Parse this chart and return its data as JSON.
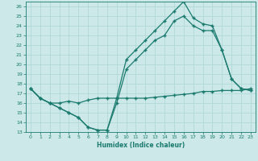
{
  "title": "",
  "xlabel": "Humidex (Indice chaleur)",
  "xlim": [
    -0.5,
    23.5
  ],
  "ylim": [
    13,
    26.5
  ],
  "yticks": [
    13,
    14,
    15,
    16,
    17,
    18,
    19,
    20,
    21,
    22,
    23,
    24,
    25,
    26
  ],
  "xticks": [
    0,
    1,
    2,
    3,
    4,
    5,
    6,
    7,
    8,
    9,
    10,
    11,
    12,
    13,
    14,
    15,
    16,
    17,
    18,
    19,
    20,
    21,
    22,
    23
  ],
  "bg_color": "#cce8e8",
  "grid_color": "#b0d8d8",
  "line_color": "#1a7a6e",
  "x": [
    0,
    1,
    2,
    3,
    4,
    5,
    6,
    7,
    8,
    9,
    10,
    11,
    12,
    13,
    14,
    15,
    16,
    17,
    18,
    19,
    20,
    21,
    22,
    23
  ],
  "y_top": [
    17.5,
    16.5,
    16.0,
    15.5,
    15.0,
    14.5,
    13.5,
    13.2,
    13.2,
    16.5,
    20.5,
    21.5,
    22.5,
    23.5,
    24.5,
    25.5,
    26.5,
    24.8,
    24.2,
    24.0,
    21.5,
    18.5,
    17.5,
    17.3
  ],
  "y_mid": [
    17.5,
    16.5,
    16.0,
    15.5,
    15.0,
    14.5,
    13.5,
    13.2,
    13.2,
    16.0,
    19.5,
    20.5,
    21.5,
    22.5,
    23.0,
    24.5,
    25.0,
    24.0,
    23.5,
    23.5,
    21.5,
    18.5,
    17.5,
    17.3
  ],
  "y_bot": [
    17.5,
    16.5,
    16.0,
    16.0,
    16.2,
    16.0,
    16.3,
    16.5,
    16.5,
    16.5,
    16.5,
    16.5,
    16.5,
    16.6,
    16.7,
    16.8,
    16.9,
    17.0,
    17.2,
    17.2,
    17.3,
    17.3,
    17.3,
    17.5
  ]
}
